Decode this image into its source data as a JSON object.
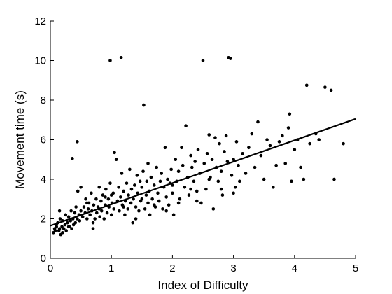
{
  "chart_data": {
    "type": "scatter",
    "title": "",
    "xlabel": "Index of Difficulty",
    "ylabel": "Movement time (s)",
    "xlim": [
      0,
      5
    ],
    "ylim": [
      0,
      12
    ],
    "xticks": [
      0,
      1,
      2,
      3,
      4,
      5
    ],
    "yticks": [
      0,
      2,
      4,
      6,
      8,
      10,
      12
    ],
    "grid": false,
    "fit_line": {
      "x": [
        0,
        5
      ],
      "y": [
        1.65,
        7.05
      ]
    },
    "points": [
      [
        0.05,
        1.3
      ],
      [
        0.07,
        1.5
      ],
      [
        0.08,
        1.4
      ],
      [
        0.1,
        1.6
      ],
      [
        0.1,
        1.7
      ],
      [
        0.12,
        1.8
      ],
      [
        0.14,
        1.4
      ],
      [
        0.15,
        1.5
      ],
      [
        0.16,
        2.0
      ],
      [
        0.17,
        1.2
      ],
      [
        0.19,
        1.6
      ],
      [
        0.2,
        1.9
      ],
      [
        0.22,
        1.5
      ],
      [
        0.24,
        1.7
      ],
      [
        0.25,
        2.2
      ],
      [
        0.26,
        1.4
      ],
      [
        0.28,
        1.8
      ],
      [
        0.3,
        2.1
      ],
      [
        0.31,
        1.6
      ],
      [
        0.33,
        1.9
      ],
      [
        0.34,
        2.4
      ],
      [
        0.35,
        1.5
      ],
      [
        0.37,
        2.0
      ],
      [
        0.38,
        1.7
      ],
      [
        0.4,
        2.3
      ],
      [
        0.41,
        1.8
      ],
      [
        0.42,
        2.6
      ],
      [
        0.44,
        2.0
      ],
      [
        0.45,
        3.4
      ],
      [
        0.47,
        2.2
      ],
      [
        0.48,
        1.9
      ],
      [
        0.5,
        2.4
      ],
      [
        0.36,
        5.05
      ],
      [
        0.44,
        5.9
      ],
      [
        0.5,
        3.6
      ],
      [
        0.53,
        2.1
      ],
      [
        0.55,
        2.6
      ],
      [
        0.57,
        2.3
      ],
      [
        0.58,
        3.0
      ],
      [
        0.6,
        2.0
      ],
      [
        0.62,
        2.5
      ],
      [
        0.63,
        2.8
      ],
      [
        0.65,
        2.2
      ],
      [
        0.67,
        3.3
      ],
      [
        0.68,
        2.4
      ],
      [
        0.7,
        1.5
      ],
      [
        0.71,
        2.7
      ],
      [
        0.73,
        2.0
      ],
      [
        0.75,
        3.0
      ],
      [
        0.76,
        2.3
      ],
      [
        0.78,
        2.6
      ],
      [
        0.8,
        3.6
      ],
      [
        0.81,
        2.1
      ],
      [
        0.83,
        2.9
      ],
      [
        0.84,
        2.4
      ],
      [
        0.86,
        3.2
      ],
      [
        0.88,
        2.0
      ],
      [
        0.9,
        2.7
      ],
      [
        0.91,
        3.5
      ],
      [
        0.93,
        2.3
      ],
      [
        0.95,
        3.0
      ],
      [
        0.96,
        2.6
      ],
      [
        0.98,
        3.8
      ],
      [
        1.0,
        2.2
      ],
      [
        1.01,
        2.8
      ],
      [
        1.03,
        3.3
      ],
      [
        1.04,
        2.5
      ],
      [
        0.98,
        10.0
      ],
      [
        1.16,
        10.15
      ],
      [
        1.05,
        5.35
      ],
      [
        1.08,
        5.0
      ],
      [
        1.1,
        2.9
      ],
      [
        1.12,
        3.6
      ],
      [
        1.13,
        2.4
      ],
      [
        1.15,
        3.1
      ],
      [
        1.17,
        4.3
      ],
      [
        1.18,
        2.7
      ],
      [
        1.2,
        3.4
      ],
      [
        1.22,
        2.2
      ],
      [
        1.23,
        2.9
      ],
      [
        1.25,
        3.8
      ],
      [
        1.27,
        2.5
      ],
      [
        1.28,
        3.2
      ],
      [
        1.3,
        4.5
      ],
      [
        1.32,
        2.8
      ],
      [
        1.33,
        3.5
      ],
      [
        1.35,
        1.8
      ],
      [
        1.36,
        3.0
      ],
      [
        1.38,
        3.7
      ],
      [
        1.4,
        2.6
      ],
      [
        1.42,
        4.2
      ],
      [
        1.43,
        3.3
      ],
      [
        1.45,
        2.4
      ],
      [
        1.47,
        3.9
      ],
      [
        1.48,
        2.9
      ],
      [
        1.5,
        3.6
      ],
      [
        1.52,
        4.4
      ],
      [
        1.53,
        7.75
      ],
      [
        1.55,
        2.5
      ],
      [
        1.57,
        3.2
      ],
      [
        1.58,
        3.9
      ],
      [
        1.6,
        2.8
      ],
      [
        1.62,
        3.4
      ],
      [
        1.63,
        2.2
      ],
      [
        1.65,
        4.1
      ],
      [
        1.67,
        3.0
      ],
      [
        1.7,
        3.7
      ],
      [
        1.72,
        2.6
      ],
      [
        1.74,
        4.6
      ],
      [
        1.76,
        3.3
      ],
      [
        1.78,
        2.9
      ],
      [
        1.8,
        3.9
      ],
      [
        1.82,
        4.3
      ],
      [
        1.84,
        2.5
      ],
      [
        1.86,
        3.6
      ],
      [
        1.88,
        5.6
      ],
      [
        1.9,
        3.1
      ],
      [
        1.92,
        4.0
      ],
      [
        1.94,
        2.7
      ],
      [
        1.96,
        3.8
      ],
      [
        1.98,
        4.5
      ],
      [
        2.0,
        3.3
      ],
      [
        2.02,
        2.2
      ],
      [
        2.05,
        5.0
      ],
      [
        2.07,
        3.9
      ],
      [
        2.1,
        4.4
      ],
      [
        2.12,
        3.0
      ],
      [
        2.15,
        5.6
      ],
      [
        2.17,
        4.7
      ],
      [
        2.2,
        3.6
      ],
      [
        2.22,
        6.7
      ],
      [
        2.25,
        4.1
      ],
      [
        2.27,
        3.2
      ],
      [
        2.3,
        5.2
      ],
      [
        2.32,
        4.6
      ],
      [
        2.35,
        3.9
      ],
      [
        2.37,
        4.9
      ],
      [
        2.4,
        3.4
      ],
      [
        2.42,
        5.5
      ],
      [
        2.45,
        4.3
      ],
      [
        2.47,
        2.8
      ],
      [
        2.5,
        10.0
      ],
      [
        2.52,
        4.8
      ],
      [
        2.55,
        3.5
      ],
      [
        2.57,
        5.3
      ],
      [
        2.6,
        6.25
      ],
      [
        2.62,
        4.1
      ],
      [
        2.65,
        5.0
      ],
      [
        2.67,
        2.5
      ],
      [
        2.7,
        6.1
      ],
      [
        2.72,
        4.6
      ],
      [
        2.75,
        3.9
      ],
      [
        2.77,
        5.8
      ],
      [
        2.8,
        4.4
      ],
      [
        2.82,
        3.2
      ],
      [
        2.85,
        5.4
      ],
      [
        2.88,
        6.2
      ],
      [
        2.9,
        4.9
      ],
      [
        2.92,
        10.15
      ],
      [
        2.95,
        10.1
      ],
      [
        2.97,
        4.2
      ],
      [
        3.0,
        5.0
      ],
      [
        3.03,
        3.6
      ],
      [
        3.05,
        5.9
      ],
      [
        3.08,
        4.7
      ],
      [
        3.1,
        3.9
      ],
      [
        3.15,
        5.3
      ],
      [
        3.2,
        4.3
      ],
      [
        3.25,
        5.6
      ],
      [
        3.3,
        6.3
      ],
      [
        3.35,
        4.6
      ],
      [
        3.4,
        6.9
      ],
      [
        3.45,
        5.2
      ],
      [
        3.5,
        4.0
      ],
      [
        3.55,
        6.0
      ],
      [
        3.6,
        5.7
      ],
      [
        3.65,
        3.6
      ],
      [
        3.7,
        4.7
      ],
      [
        3.75,
        5.9
      ],
      [
        3.8,
        6.2
      ],
      [
        3.85,
        4.8
      ],
      [
        3.9,
        6.6
      ],
      [
        3.95,
        3.9
      ],
      [
        4.0,
        5.5
      ],
      [
        3.92,
        7.3
      ],
      [
        4.05,
        6.0
      ],
      [
        4.1,
        4.6
      ],
      [
        4.15,
        4.0
      ],
      [
        4.2,
        8.75
      ],
      [
        4.25,
        5.8
      ],
      [
        4.35,
        6.3
      ],
      [
        4.4,
        6.0
      ],
      [
        4.5,
        8.65
      ],
      [
        4.6,
        8.5
      ],
      [
        4.65,
        4.0
      ],
      [
        4.8,
        5.8
      ],
      [
        1.5,
        3.0
      ],
      [
        1.6,
        4.8
      ],
      [
        1.7,
        2.7
      ],
      [
        1.9,
        2.4
      ],
      [
        2.0,
        3.7
      ],
      [
        2.1,
        2.8
      ],
      [
        2.3,
        3.5
      ],
      [
        2.4,
        2.9
      ],
      [
        2.6,
        4.0
      ],
      [
        2.8,
        3.5
      ],
      [
        3.0,
        3.3
      ],
      [
        0.9,
        3.1
      ],
      [
        1.0,
        3.2
      ],
      [
        1.2,
        2.6
      ],
      [
        1.4,
        2.0
      ],
      [
        0.6,
        2.8
      ],
      [
        0.7,
        1.8
      ],
      [
        0.8,
        2.5
      ],
      [
        0.3,
        1.6
      ],
      [
        0.2,
        1.3
      ],
      [
        0.15,
        2.4
      ]
    ]
  }
}
